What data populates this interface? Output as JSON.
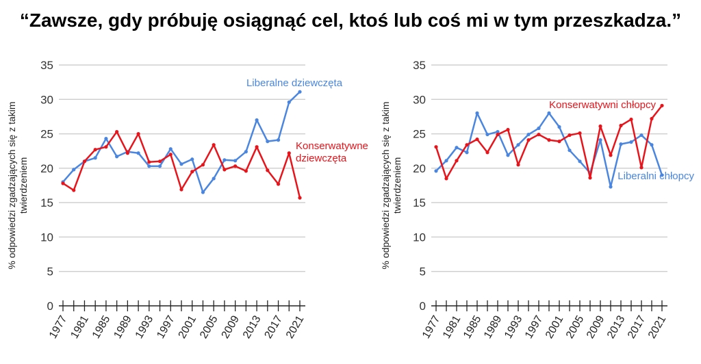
{
  "title": "“Zawsze, gdy próbuję osiągnąć cel, ktoś lub coś mi w tym przeszkadza.”",
  "chart_data": [
    {
      "type": "line",
      "ylabel": "% odpowiedzi zgadzających się z takim twierdzeniem",
      "ylabel_lines": [
        "% odpowiedzi zgadzających się z takim",
        "twierdzeniem"
      ],
      "ylim": [
        0,
        35
      ],
      "yticks": [
        0,
        5,
        10,
        15,
        20,
        25,
        30,
        35
      ],
      "x": [
        1977,
        1979,
        1981,
        1983,
        1985,
        1987,
        1989,
        1991,
        1993,
        1995,
        1997,
        1999,
        2001,
        2003,
        2005,
        2007,
        2009,
        2011,
        2013,
        2015,
        2017,
        2019,
        2021
      ],
      "xtick_labels": [
        "1977",
        "1981",
        "1985",
        "1989",
        "1993",
        "1997",
        "2001",
        "2005",
        "2009",
        "2013",
        "2017",
        "2021"
      ],
      "grid": true,
      "series": [
        {
          "name": "Liberalne dziewczęta",
          "color": "#4a86e0",
          "values": [
            18.0,
            19.8,
            21.0,
            21.5,
            24.3,
            21.7,
            22.4,
            22.2,
            20.3,
            20.3,
            22.8,
            20.6,
            21.3,
            16.5,
            18.5,
            21.2,
            21.1,
            22.4,
            27.0,
            23.9,
            24.1,
            29.6,
            31.1
          ]
        },
        {
          "name": "Konserwatywne dziewczęta",
          "label_lines": [
            "Konserwatywne",
            "dziewczęta"
          ],
          "color": "#e8141b",
          "values": [
            17.8,
            16.8,
            21.0,
            22.7,
            23.1,
            25.3,
            22.2,
            25.0,
            20.9,
            21.0,
            22.0,
            16.9,
            19.5,
            20.5,
            23.4,
            19.8,
            20.3,
            19.6,
            23.1,
            19.7,
            17.7,
            22.2,
            15.7
          ]
        }
      ]
    },
    {
      "type": "line",
      "ylabel": "% odpowiedzi zgadzających się z takim twierdzeniem",
      "ylabel_lines": [
        "% odpowiedzi zgadzających się z takim",
        "twierdzeniem"
      ],
      "ylim": [
        0,
        35
      ],
      "yticks": [
        0,
        5,
        10,
        15,
        20,
        25,
        30,
        35
      ],
      "x": [
        1977,
        1979,
        1981,
        1983,
        1985,
        1987,
        1989,
        1991,
        1993,
        1995,
        1997,
        1999,
        2001,
        2003,
        2005,
        2007,
        2009,
        2011,
        2013,
        2015,
        2017,
        2019,
        2021
      ],
      "xtick_labels": [
        "1977",
        "1981",
        "1985",
        "1989",
        "1993",
        "1997",
        "2001",
        "2005",
        "2009",
        "2013",
        "2017",
        "2021"
      ],
      "grid": true,
      "series": [
        {
          "name": "Liberalni chłopcy",
          "color": "#4a86e0",
          "values": [
            19.6,
            21.1,
            23.0,
            22.3,
            28.0,
            24.9,
            25.3,
            21.9,
            23.4,
            24.9,
            25.8,
            28.0,
            26.0,
            22.6,
            21.0,
            19.3,
            24.1,
            17.3,
            23.5,
            23.8,
            24.8,
            23.4,
            19.0
          ]
        },
        {
          "name": "Konserwatywni chłopcy",
          "color": "#e8141b",
          "values": [
            23.1,
            18.5,
            21.1,
            23.4,
            24.2,
            22.3,
            24.9,
            25.6,
            20.5,
            24.1,
            24.9,
            24.1,
            23.9,
            24.8,
            25.1,
            18.6,
            26.1,
            21.9,
            26.2,
            27.1,
            20.1,
            27.2,
            29.1
          ]
        }
      ]
    }
  ]
}
